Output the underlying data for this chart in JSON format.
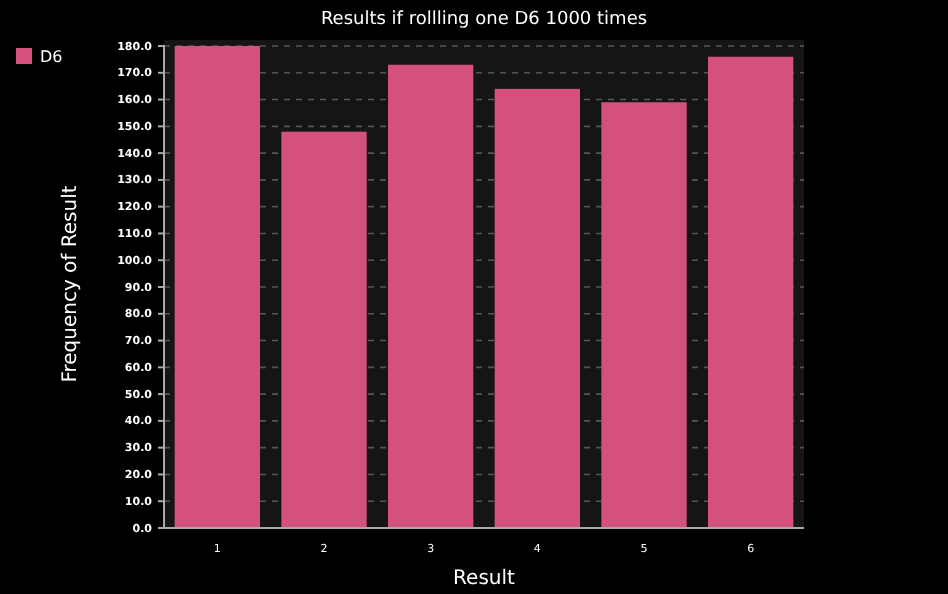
{
  "chart_data": {
    "type": "bar",
    "title": "Results if rollling one D6 1000 times",
    "xlabel": "Result",
    "ylabel": "Frequency of Result",
    "categories": [
      "1",
      "2",
      "3",
      "4",
      "5",
      "6"
    ],
    "series": [
      {
        "name": "D6",
        "color": "#d4507f",
        "values": [
          180,
          148,
          173,
          164,
          159,
          176
        ]
      }
    ],
    "ylim": [
      0,
      180
    ],
    "yticks": [
      {
        "value": 0,
        "label": "0.0"
      },
      {
        "value": 10,
        "label": "10.0"
      },
      {
        "value": 20,
        "label": "20.0"
      },
      {
        "value": 30,
        "label": "30.0"
      },
      {
        "value": 40,
        "label": "40.0"
      },
      {
        "value": 50,
        "label": "50.0"
      },
      {
        "value": 60,
        "label": "60.0"
      },
      {
        "value": 70,
        "label": "70.0"
      },
      {
        "value": 80,
        "label": "80.0"
      },
      {
        "value": 90,
        "label": "90.0"
      },
      {
        "value": 100,
        "label": "100.0"
      },
      {
        "value": 110,
        "label": "110.0"
      },
      {
        "value": 120,
        "label": "120.0"
      },
      {
        "value": 130,
        "label": "130.0"
      },
      {
        "value": 140,
        "label": "140.0"
      },
      {
        "value": 150,
        "label": "150.0"
      },
      {
        "value": 160,
        "label": "160.0"
      },
      {
        "value": 170,
        "label": "170.0"
      },
      {
        "value": 180,
        "label": "180.0"
      }
    ],
    "grid": "y",
    "legend": "top left"
  }
}
